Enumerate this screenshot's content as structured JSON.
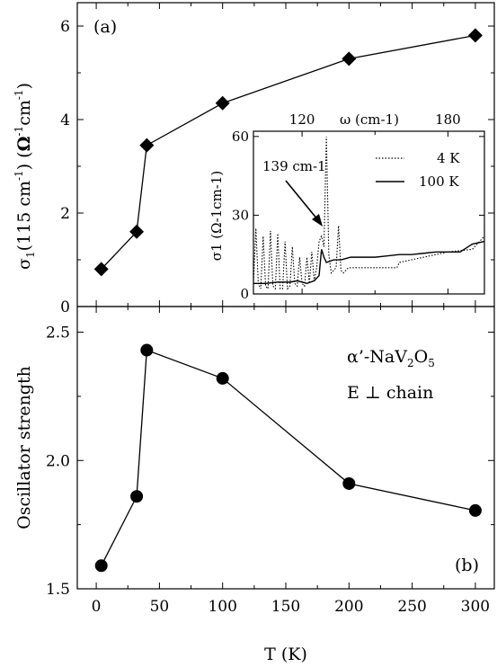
{
  "chart_data": [
    {
      "panel_label": "(a)",
      "type": "line",
      "ylabel": "σ1(115 cm-1)   (Ω-1cm-1)",
      "ylim": [
        0,
        6.5
      ],
      "yticks": [
        "0",
        "2",
        "4",
        "6"
      ],
      "xlim": [
        -15,
        315
      ],
      "series": [
        {
          "marker": "diamond",
          "x": [
            4,
            32,
            40,
            100,
            200,
            300
          ],
          "y": [
            0.8,
            1.6,
            3.45,
            4.35,
            5.3,
            5.8
          ]
        }
      ],
      "inset": {
        "type": "line",
        "xlabel": "ω (cm-1)",
        "xticks": [
          "120",
          "180"
        ],
        "xlim": [
          100,
          195
        ],
        "ylabel": "σ1 (Ω-1cm-1)",
        "yticks": [
          "0",
          "30",
          "60"
        ],
        "ylim": [
          0,
          62
        ],
        "annotation": "139 cm-1",
        "series": [
          {
            "name": "4 K",
            "style": "dotted",
            "x": [
              100,
              101,
              102,
              103,
              104,
              105,
              106,
              107,
              108,
              109,
              110,
              111,
              112,
              113,
              114,
              115,
              116,
              117,
              118,
              119,
              120,
              121,
              122,
              123,
              124,
              125,
              126,
              127,
              128,
              129,
              130,
              131,
              132,
              133,
              134,
              135,
              136,
              137,
              138,
              139,
              140,
              141,
              142,
              143,
              144,
              145,
              146,
              147,
              148,
              149,
              150,
              151,
              152,
              153,
              154,
              155,
              156,
              157,
              158,
              159,
              160,
              170,
              180,
              190,
              195
            ],
            "y": [
              4,
              25,
              4,
              2,
              22,
              3,
              2,
              24,
              3,
              2,
              23,
              2,
              2,
              20,
              2,
              3,
              18,
              4,
              3,
              14,
              4,
              3,
              14,
              4,
              16,
              5,
              10,
              20,
              22,
              18,
              60,
              15,
              8,
              9,
              10,
              26,
              9,
              8,
              9,
              10,
              10,
              10,
              10,
              10,
              10,
              10,
              10,
              10,
              10,
              10,
              10,
              10,
              10,
              10,
              10,
              10,
              10,
              10,
              10,
              10,
              12,
              14,
              16,
              17,
              22
            ]
          },
          {
            "name": "100 K",
            "style": "solid",
            "x": [
              100,
              105,
              110,
              115,
              118,
              120,
              122,
              125,
              127,
              128,
              129,
              130,
              133,
              136,
              140,
              145,
              150,
              155,
              160,
              165,
              170,
              175,
              180,
              185,
              190,
              195
            ],
            "y": [
              4,
              4,
              4.5,
              4.5,
              5,
              4.5,
              4,
              5,
              7,
              17,
              14,
              12,
              13,
              13,
              14,
              14,
              14,
              14.5,
              15,
              15,
              15.5,
              16,
              16,
              16,
              19,
              20
            ]
          }
        ]
      }
    },
    {
      "panel_label": "(b)",
      "type": "line",
      "ylabel": "Oscillator strength",
      "xlabel": "T   (K)",
      "xlim": [
        -15,
        315
      ],
      "xticks": [
        "0",
        "50",
        "100",
        "150",
        "200",
        "250",
        "300"
      ],
      "ylim": [
        1.5,
        2.6
      ],
      "yticks": [
        "1.5",
        "2.0",
        "2.5"
      ],
      "annotations": [
        "α’-NaV2O5",
        "E ⊥ chain"
      ],
      "series": [
        {
          "marker": "circle",
          "x": [
            4,
            32,
            40,
            100,
            200,
            300
          ],
          "y": [
            1.59,
            1.86,
            2.43,
            2.32,
            1.91,
            1.805
          ]
        }
      ]
    }
  ]
}
